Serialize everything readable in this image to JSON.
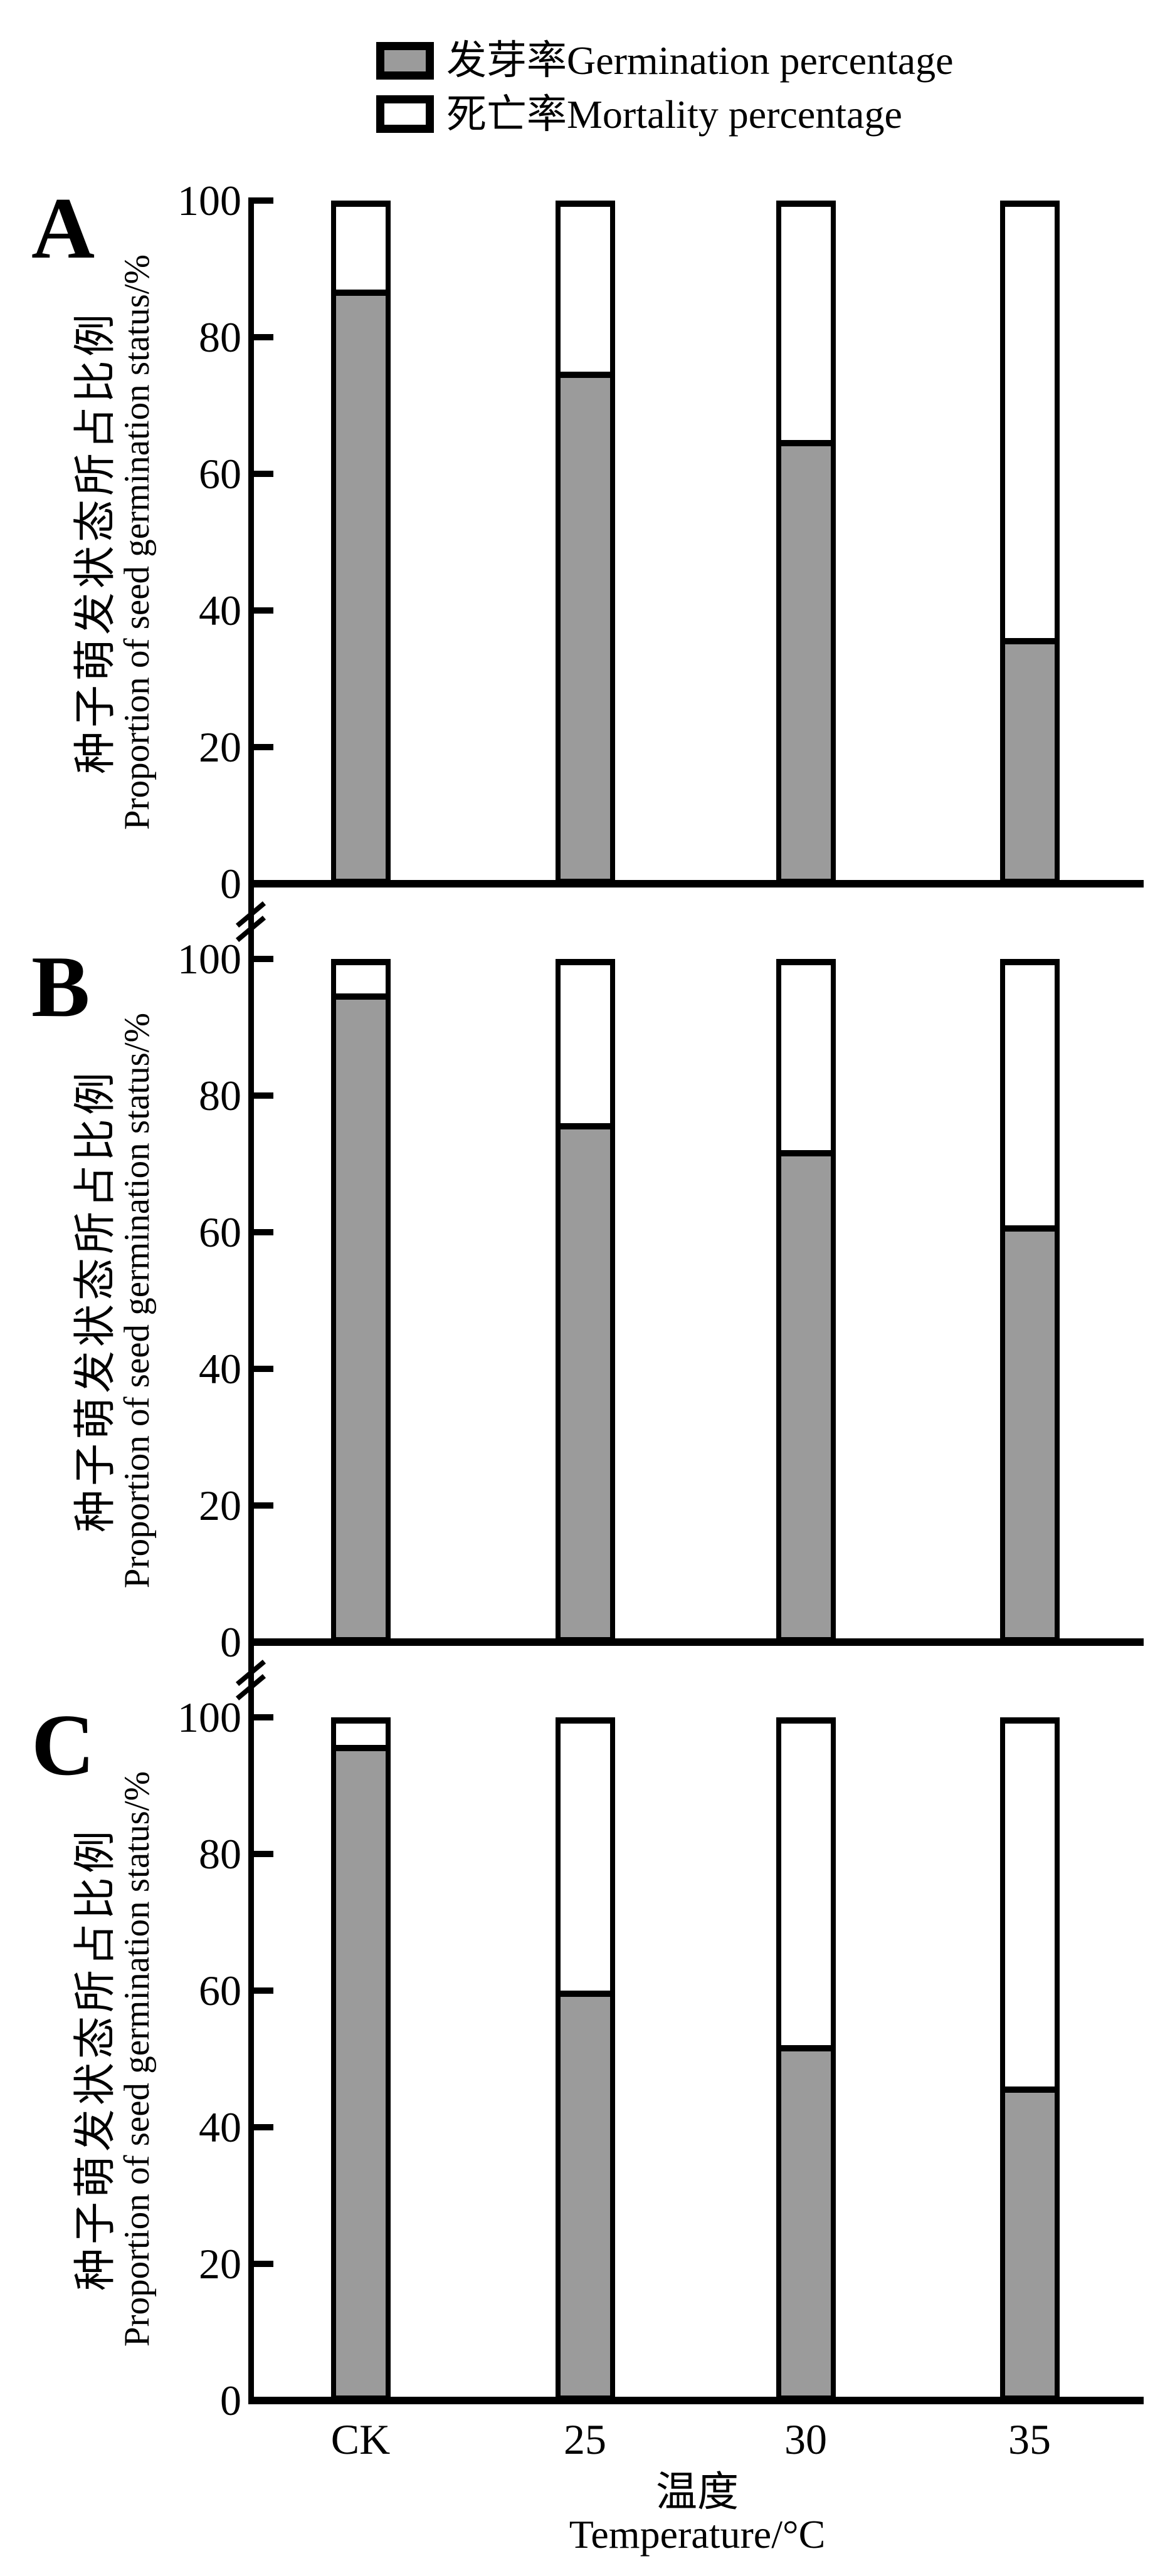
{
  "legend": {
    "items": [
      {
        "label": "发芽率Germination percentage",
        "swatch": "germination"
      },
      {
        "label": "死亡率Mortality percentage",
        "swatch": "mortality"
      }
    ]
  },
  "colors": {
    "germination": "#9b9b9b",
    "mortality": "#ffffff",
    "line": "#000000"
  },
  "y_axis": {
    "title_zh": "种子萌发状态所占比例",
    "title_en": "Proportion of seed germination status/%",
    "ticks": [
      0,
      20,
      40,
      60,
      80,
      100
    ]
  },
  "x_axis": {
    "title_zh": "温度",
    "title_en": "Temperature/°C",
    "categories": [
      "CK",
      "25",
      "30",
      "35"
    ]
  },
  "chart_data": [
    {
      "panel": "A",
      "type": "bar",
      "stacked": true,
      "categories": [
        "CK",
        "25",
        "30",
        "35"
      ],
      "series": [
        {
          "name": "发芽率Germination percentage",
          "values": [
            87,
            75,
            65,
            36
          ]
        },
        {
          "name": "死亡率Mortality percentage",
          "values": [
            13,
            25,
            35,
            64
          ]
        }
      ],
      "ylim": [
        0,
        100
      ],
      "grid": false,
      "legend_position": "top"
    },
    {
      "panel": "B",
      "type": "bar",
      "stacked": true,
      "categories": [
        "CK",
        "25",
        "30",
        "35"
      ],
      "series": [
        {
          "name": "发芽率Germination percentage",
          "values": [
            95,
            76,
            72,
            61
          ]
        },
        {
          "name": "死亡率Mortality percentage",
          "values": [
            5,
            24,
            28,
            39
          ]
        }
      ],
      "ylim": [
        0,
        100
      ],
      "grid": false,
      "legend_position": "top"
    },
    {
      "panel": "C",
      "type": "bar",
      "stacked": true,
      "categories": [
        "CK",
        "25",
        "30",
        "35"
      ],
      "series": [
        {
          "name": "发芽率Germination percentage",
          "values": [
            96,
            60,
            52,
            46
          ]
        },
        {
          "name": "死亡率Mortality percentage",
          "values": [
            4,
            40,
            48,
            54
          ]
        }
      ],
      "ylim": [
        0,
        100
      ],
      "grid": false,
      "legend_position": "top"
    }
  ]
}
